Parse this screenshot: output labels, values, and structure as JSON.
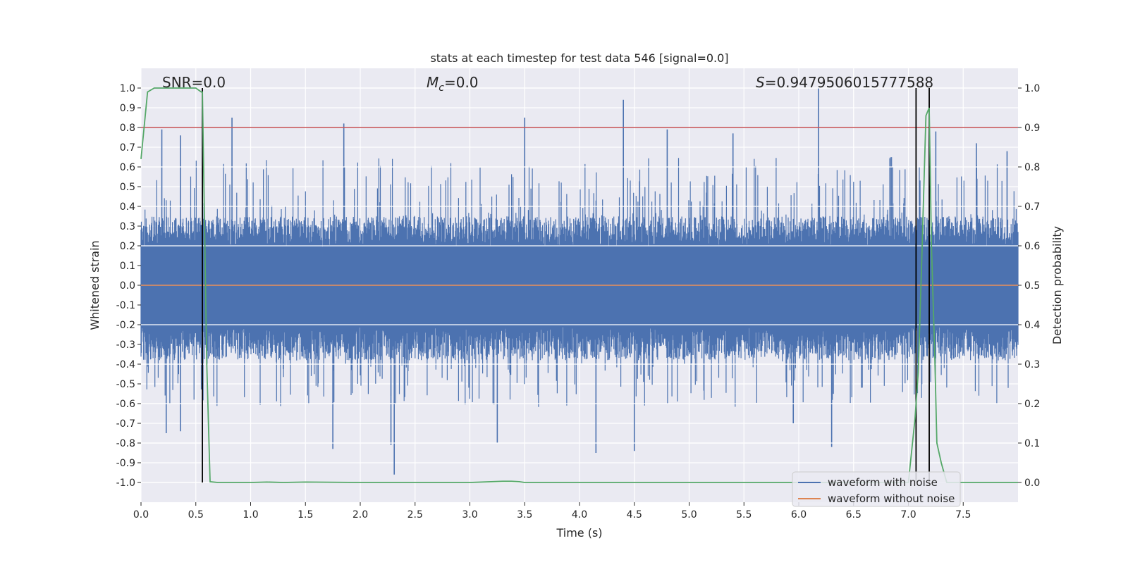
{
  "chart_data": {
    "type": "line",
    "title": "stats at each timestep for test data 546 [signal=0.0]",
    "xlabel": "Time (s)",
    "ylabel": "Whitened strain",
    "y2label": "Detection probability",
    "xlim": [
      0.0,
      8.0
    ],
    "ylim": [
      -1.1,
      1.1
    ],
    "y2lim": [
      -0.05,
      1.05
    ],
    "x_ticks": [
      0.0,
      0.5,
      1.0,
      1.5,
      2.0,
      2.5,
      3.0,
      3.5,
      4.0,
      4.5,
      5.0,
      5.5,
      6.0,
      6.5,
      7.0,
      7.5
    ],
    "x_tick_labels": [
      "0.0",
      "0.5",
      "1.0",
      "1.5",
      "2.0",
      "2.5",
      "3.0",
      "3.5",
      "4.0",
      "4.5",
      "5.0",
      "5.5",
      "6.0",
      "6.5",
      "7.0",
      "7.5"
    ],
    "y_ticks": [
      1.0,
      0.9,
      0.8,
      0.7,
      0.6,
      0.5,
      0.4,
      0.3,
      0.2,
      0.1,
      0.0,
      -0.1,
      -0.2,
      -0.3,
      -0.4,
      -0.5,
      -0.6,
      -0.7,
      -0.8,
      -0.9,
      -1.0
    ],
    "y_tick_labels": [
      "1.0",
      "0.9",
      "0.8",
      "0.7",
      "0.6",
      "0.5",
      "0.4",
      "0.3",
      "0.2",
      "0.1",
      "0.0",
      "-0.1",
      "-0.2",
      "-0.3",
      "-0.4",
      "-0.5",
      "-0.6",
      "-0.7",
      "-0.8",
      "-0.9",
      "-1.0"
    ],
    "y2_ticks": [
      1.0,
      0.9,
      0.8,
      0.7,
      0.6,
      0.5,
      0.4,
      0.3,
      0.2,
      0.1,
      0.0
    ],
    "y2_tick_labels": [
      "1.0",
      "0.9",
      "0.8",
      "0.7",
      "0.6",
      "0.5",
      "0.4",
      "0.3",
      "0.2",
      "0.1",
      "0.0"
    ],
    "annotations": {
      "snr": "SNR=0.0",
      "mc_symbol": "M",
      "mc_sub": "c",
      "mc_value": "=0.0",
      "s_symbol": "S",
      "s_value": "=0.9479506015777588"
    },
    "series": [
      {
        "name": "waveform with noise",
        "color": "#4c72b0",
        "axis": "left",
        "description": "whitened noisy strain, envelope approx ±0.35 with spikes up to 1.0 and down to -0.96",
        "envelope_upper": 0.35,
        "envelope_lower": -0.38,
        "spikes": [
          [
            0.19,
            0.79
          ],
          [
            0.23,
            -0.75
          ],
          [
            0.36,
            0.76
          ],
          [
            0.36,
            -0.74
          ],
          [
            0.83,
            0.85
          ],
          [
            1.85,
            0.82
          ],
          [
            1.75,
            -0.83
          ],
          [
            2.31,
            -0.96
          ],
          [
            2.28,
            -0.81
          ],
          [
            3.5,
            0.85
          ],
          [
            3.25,
            -0.8
          ],
          [
            4.15,
            -0.85
          ],
          [
            4.4,
            0.94
          ],
          [
            4.5,
            -0.84
          ],
          [
            4.8,
            0.79
          ],
          [
            5.4,
            0.77
          ],
          [
            6.18,
            1.0
          ],
          [
            6.3,
            -0.82
          ],
          [
            5.95,
            -0.7
          ],
          [
            7.25,
            0.78
          ],
          [
            7.62,
            0.72
          ],
          [
            7.9,
            0.68
          ]
        ]
      },
      {
        "name": "waveform without noise",
        "color": "#dd8452",
        "axis": "left",
        "x": [
          0.0,
          8.0
        ],
        "y": [
          0.0,
          0.0
        ]
      },
      {
        "name": "detection probability",
        "color": "#55a868",
        "axis": "right",
        "x": [
          0.0,
          0.06,
          0.12,
          0.2,
          0.3,
          0.4,
          0.5,
          0.55,
          0.56,
          0.6,
          0.63,
          0.7,
          1.0,
          1.15,
          1.3,
          1.5,
          2.0,
          3.0,
          3.3,
          3.38,
          3.45,
          3.5,
          4.0,
          5.0,
          6.0,
          6.9,
          7.0,
          7.06,
          7.09,
          7.12,
          7.16,
          7.19,
          7.21,
          7.24,
          7.26,
          7.3,
          7.35,
          7.5,
          8.0
        ],
        "y": [
          0.82,
          0.99,
          1.0,
          1.0,
          1.0,
          1.0,
          1.0,
          0.99,
          0.99,
          0.3,
          0.002,
          0.0,
          0.0,
          0.001,
          0.0,
          0.001,
          0.0,
          0.0,
          0.003,
          0.003,
          0.002,
          0.0,
          0.0,
          0.0,
          0.0,
          0.0,
          0.0,
          0.16,
          0.28,
          0.55,
          0.93,
          0.95,
          0.6,
          0.33,
          0.1,
          0.05,
          0.0,
          0.0,
          0.0
        ]
      }
    ],
    "hlines": [
      {
        "axis": "right",
        "y": 0.9,
        "color": "#c44e52"
      }
    ],
    "vlines": [
      {
        "x": 0.56,
        "y2_from": 0.0,
        "y2_to": 1.0,
        "color": "#000000"
      },
      {
        "x": 7.07,
        "y2_from": 0.0,
        "y2_to": 1.0,
        "color": "#000000"
      },
      {
        "x": 7.19,
        "y2_from": 0.0,
        "y2_to": 1.0,
        "color": "#000000"
      }
    ],
    "legend": {
      "placement": "lower-right",
      "entries": [
        "waveform with noise",
        "waveform without noise"
      ]
    },
    "grid": true,
    "facecolor": "#eaeaf2"
  }
}
